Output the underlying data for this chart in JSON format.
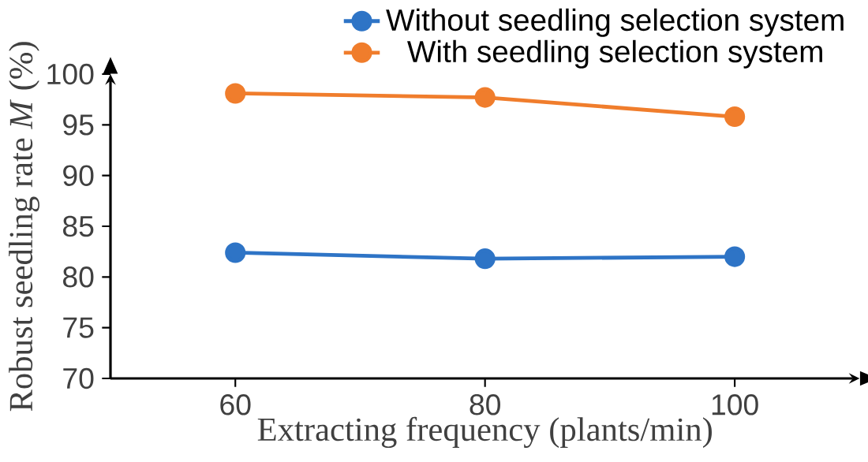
{
  "chart_data": {
    "type": "line",
    "xlabel": "Extracting  frequency  (plants/min)",
    "ylabel": "Robust seedling rate *M* (%)",
    "categories": [
      "60",
      "80",
      "100"
    ],
    "series": [
      {
        "name": "Without seedling selection system",
        "color": "#2e74c6",
        "values": [
          82.4,
          81.8,
          82.0
        ]
      },
      {
        "name": "With seedling selection system",
        "color": "#f07d2c",
        "values": [
          98.1,
          97.7,
          95.8
        ]
      }
    ],
    "ylim": [
      70,
      100
    ],
    "yticks": [
      70,
      75,
      80,
      85,
      90,
      95,
      100
    ],
    "legend": "top",
    "marker": "circle",
    "line_style": "solid"
  }
}
